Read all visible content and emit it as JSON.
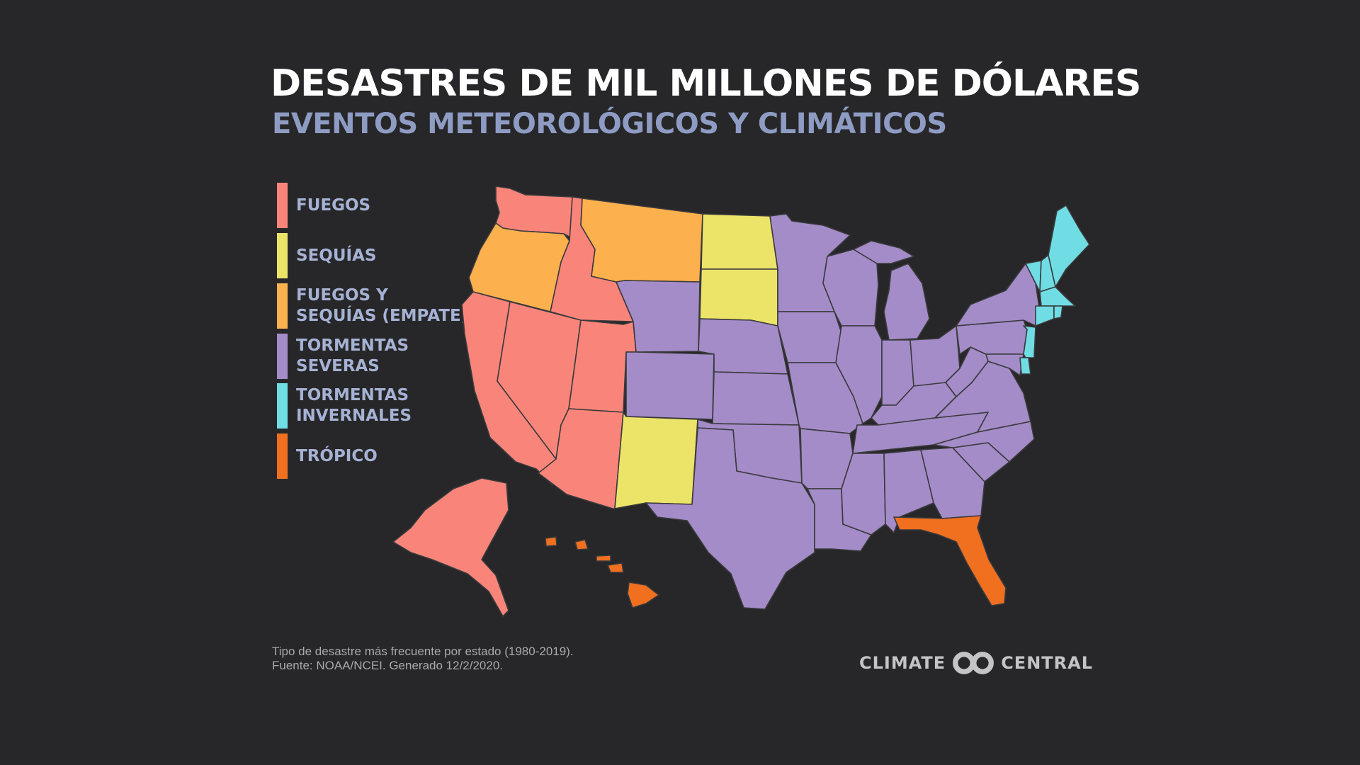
{
  "header": {
    "title": "DESASTRES DE MIL MILLONES DE DÓLARES",
    "subtitle": "EVENTOS METEOROLÓGICOS Y CLIMÁTICOS"
  },
  "legend": [
    {
      "label": "FUEGOS",
      "color": "#f9857a"
    },
    {
      "label": "SEQUÍAS",
      "color": "#ece469"
    },
    {
      "label": "FUEGOS Y\nSEQUÍAS (EMPATE)",
      "color": "#fdb04e"
    },
    {
      "label": "TORMENTAS\nSEVERAS",
      "color": "#a48cc8"
    },
    {
      "label": "TORMENTAS\nINVERNALES",
      "color": "#6fdde3"
    },
    {
      "label": "TRÓPICO",
      "color": "#f07020"
    }
  ],
  "map_data": {
    "states_by_category": {
      "FUEGOS": [
        "WA",
        "ID",
        "CA",
        "NV",
        "UT",
        "AZ",
        "AK"
      ],
      "SEQUÍAS": [
        "ND",
        "SD",
        "NM"
      ],
      "FUEGOS Y SEQUÍAS (EMPATE)": [
        "OR",
        "MT"
      ],
      "TORMENTAS SEVERAS": [
        "WY",
        "CO",
        "NE",
        "KS",
        "OK",
        "TX",
        "MN",
        "IA",
        "MO",
        "AR",
        "LA",
        "WI",
        "IL",
        "MI",
        "IN",
        "OH",
        "KY",
        "TN",
        "MS",
        "AL",
        "GA",
        "SC",
        "NC",
        "VA",
        "WV",
        "PA",
        "NY",
        "MD"
      ],
      "TORMENTAS INVERNALES": [
        "ME",
        "NH",
        "VT",
        "MA",
        "CT",
        "RI",
        "NJ",
        "DE"
      ],
      "TRÓPICO": [
        "FL",
        "HI"
      ]
    }
  },
  "footnote": {
    "line1": "Tipo de desastre más frecuente por estado (1980-2019).",
    "line2": "Fuente: NOAA/NCEI. Generado 12/2/2020."
  },
  "logo": {
    "left": "CLIMATE",
    "right": "CENTRAL"
  }
}
